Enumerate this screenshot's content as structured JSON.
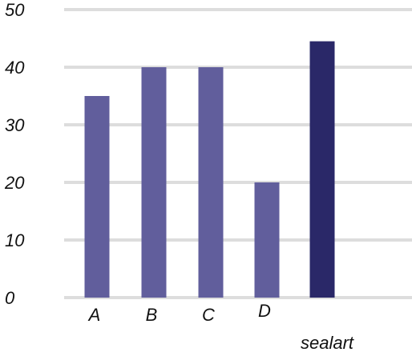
{
  "chart_data": {
    "type": "bar",
    "categories": [
      "A",
      "B",
      "C",
      "D",
      "sealart"
    ],
    "values": [
      35,
      40,
      40,
      20,
      44.5
    ],
    "title": "",
    "xlabel": "",
    "ylabel": "",
    "ylim": [
      0,
      50
    ],
    "yticks": [
      "0",
      "10",
      "20",
      "30",
      "40",
      "50"
    ],
    "grid": true,
    "colors": {
      "default": "#615e9c",
      "highlight": "#2a2868",
      "gridline": "#dddddd"
    },
    "highlight_index": 4
  }
}
